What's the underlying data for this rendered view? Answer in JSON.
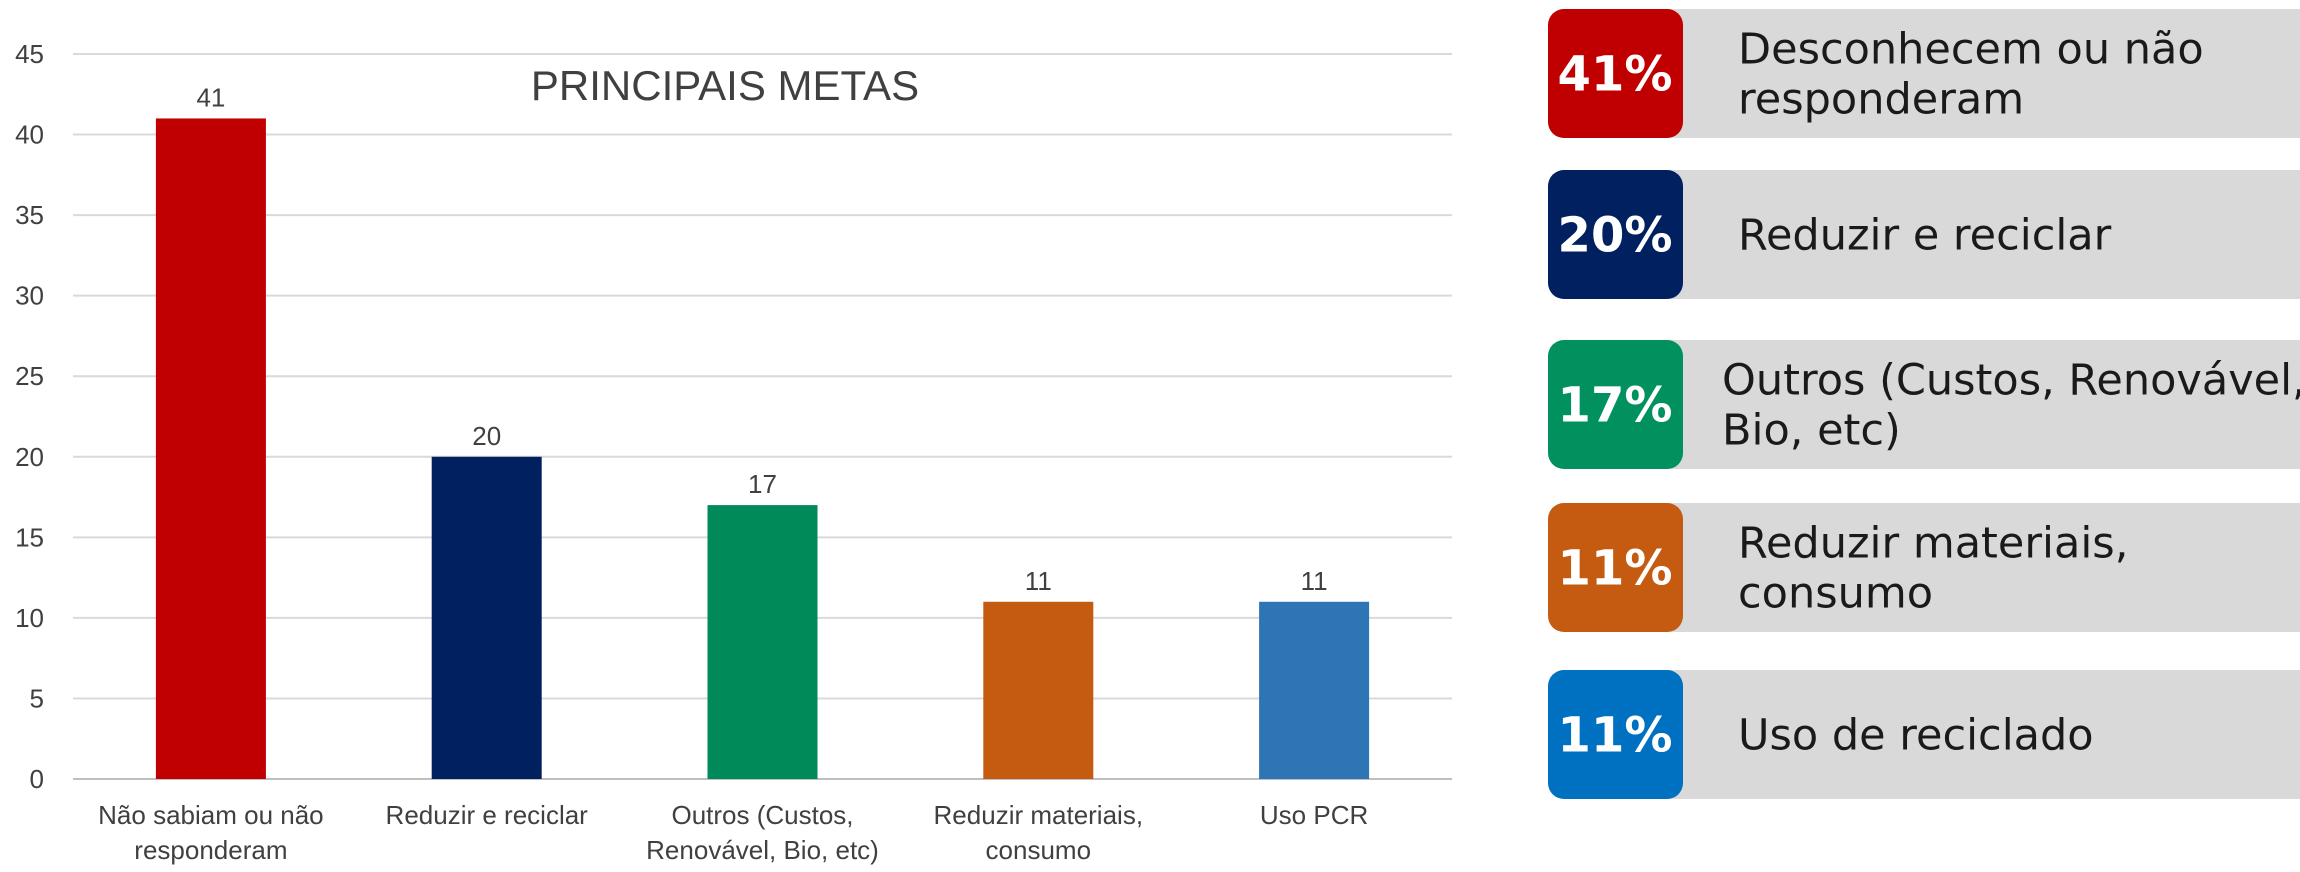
{
  "chart_data": {
    "type": "bar",
    "title": "PRINCIPAIS METAS",
    "categories": [
      "Não sabiam ou não\nresponderam",
      "Reduzir e reciclar",
      "Outros (Custos,\nRenovável, Bio, etc)",
      "Reduzir materiais,\nconsumo",
      "Uso PCR"
    ],
    "values": [
      41,
      20,
      17,
      11,
      11
    ],
    "colors": [
      "#c00000",
      "#002060",
      "#008a5a",
      "#c55a11",
      "#2e75b6"
    ],
    "ylim": [
      0,
      45
    ],
    "yticks": [
      0,
      5,
      10,
      15,
      20,
      25,
      30,
      35,
      40,
      45
    ],
    "grid": true
  },
  "panel": {
    "items": [
      {
        "percent": "41%",
        "label": "Desconhecem ou não\nresponderam",
        "color": "#c00000"
      },
      {
        "percent": "20%",
        "label": "Reduzir e reciclar",
        "color": "#002060"
      },
      {
        "percent": "17%",
        "label": "Outros (Custos, Renovável,\nBio, etc)",
        "color": "#00915f"
      },
      {
        "percent": "11%",
        "label": "Reduzir materiais,\nconsumo",
        "color": "#c55a11"
      },
      {
        "percent": "11%",
        "label": "Uso de reciclado",
        "color": "#0070c0"
      }
    ]
  }
}
